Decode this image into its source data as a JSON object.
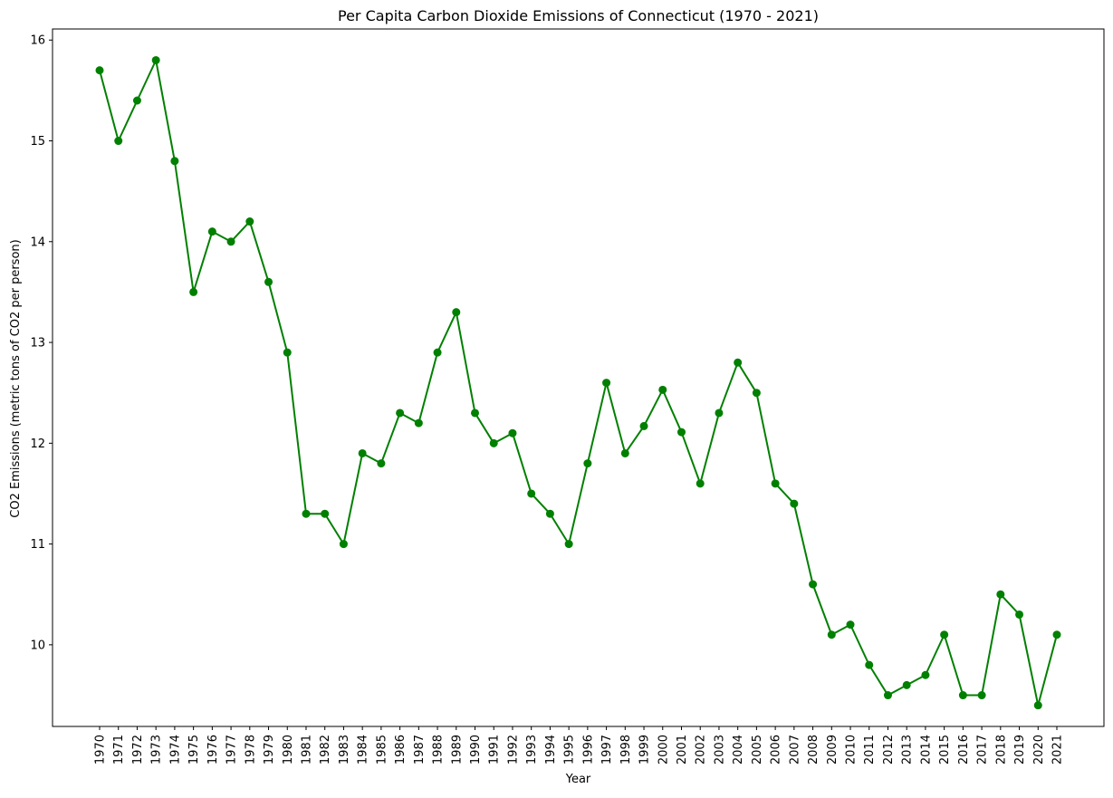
{
  "chart_data": {
    "type": "line",
    "title": "Per Capita Carbon Dioxide Emissions of Connecticut (1970 - 2021)",
    "xlabel": "Year",
    "ylabel": "CO2 Emissions (metric tons of CO2 per person)",
    "x": [
      "1970",
      "1971",
      "1972",
      "1973",
      "1974",
      "1975",
      "1976",
      "1977",
      "1978",
      "1979",
      "1980",
      "1981",
      "1982",
      "1983",
      "1984",
      "1985",
      "1986",
      "1987",
      "1988",
      "1989",
      "1990",
      "1991",
      "1992",
      "1993",
      "1994",
      "1995",
      "1996",
      "1997",
      "1998",
      "1999",
      "2000",
      "2001",
      "2002",
      "2003",
      "2004",
      "2005",
      "2006",
      "2007",
      "2008",
      "2009",
      "2010",
      "2011",
      "2012",
      "2013",
      "2014",
      "2015",
      "2016",
      "2017",
      "2018",
      "2019",
      "2020",
      "2021"
    ],
    "series": [
      {
        "color": "#008000",
        "marker": "circle",
        "values": [
          15.7,
          15.0,
          15.4,
          15.8,
          14.8,
          13.5,
          14.1,
          14.0,
          14.2,
          13.6,
          12.9,
          11.3,
          11.3,
          11.0,
          11.9,
          11.8,
          12.3,
          12.2,
          12.9,
          13.3,
          12.3,
          12.0,
          12.1,
          11.5,
          11.3,
          11.0,
          11.8,
          12.6,
          11.9,
          12.17,
          12.53,
          12.11,
          11.6,
          12.3,
          12.8,
          12.5,
          11.6,
          11.4,
          10.6,
          10.1,
          10.2,
          9.8,
          9.5,
          9.6,
          9.7,
          10.1,
          9.5,
          9.5,
          10.5,
          10.3,
          9.4,
          10.1
        ]
      }
    ],
    "yticks": [
      10,
      11,
      12,
      13,
      14,
      15,
      16
    ],
    "ylim": [
      9.19,
      16.11
    ],
    "grid": false,
    "legend": "none"
  }
}
